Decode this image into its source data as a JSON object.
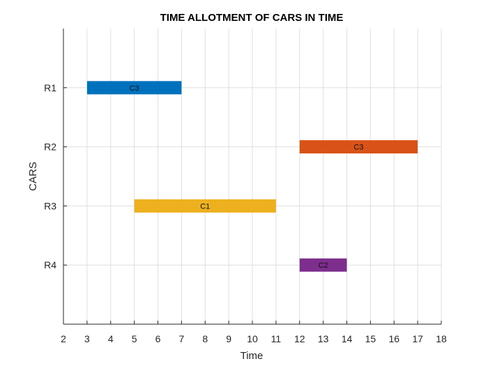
{
  "chart_data": {
    "type": "bar",
    "orientation": "horizontal",
    "title": "TIME ALLOTMENT OF CARS IN TIME",
    "xlabel": "Time",
    "ylabel": "CARS",
    "xlim": [
      2,
      18
    ],
    "xticks": [
      2,
      3,
      4,
      5,
      6,
      7,
      8,
      9,
      10,
      11,
      12,
      13,
      14,
      15,
      16,
      17,
      18
    ],
    "categories": [
      "R1",
      "R2",
      "R3",
      "R4"
    ],
    "grid": true,
    "bars": [
      {
        "row": "R1",
        "start": 3,
        "end": 7,
        "label": "C3",
        "color": "#0072BD"
      },
      {
        "row": "R2",
        "start": 12,
        "end": 17,
        "label": "C3",
        "color": "#D95319"
      },
      {
        "row": "R3",
        "start": 5,
        "end": 11,
        "label": "C1",
        "color": "#EDB120"
      },
      {
        "row": "R4",
        "start": 12,
        "end": 14,
        "label": "C2",
        "color": "#7E2F8E"
      }
    ]
  }
}
